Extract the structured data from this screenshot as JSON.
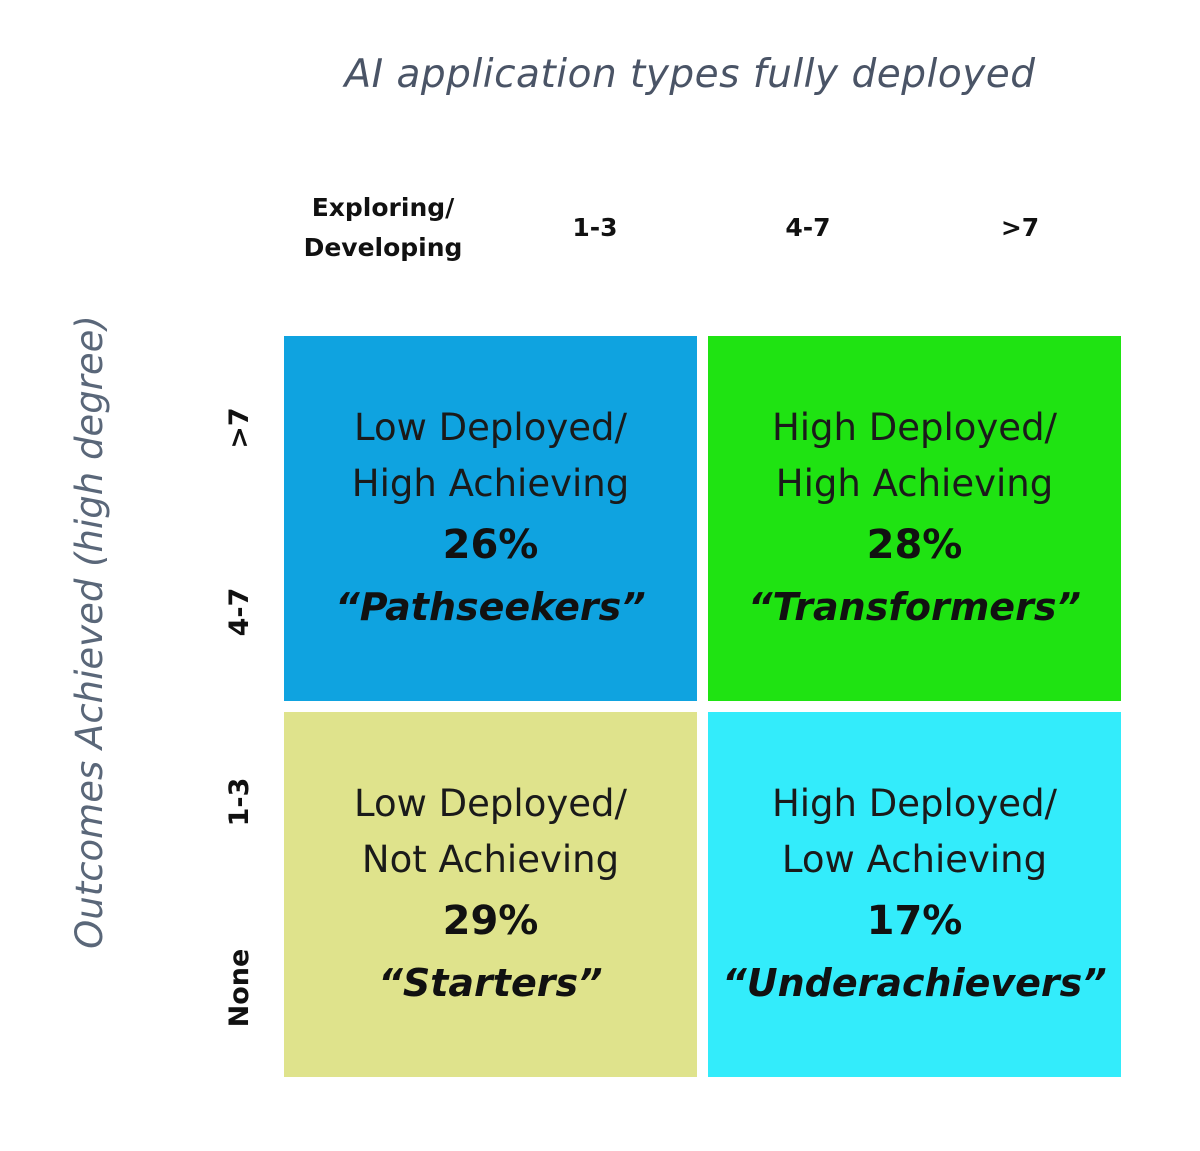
{
  "x_axis": {
    "title": "AI application types fully deployed",
    "columns": [
      {
        "lines": [
          "Exploring/",
          "Developing"
        ]
      },
      {
        "lines": [
          "1-3"
        ]
      },
      {
        "lines": [
          "4-7"
        ]
      },
      {
        "lines": [
          ">7"
        ]
      }
    ]
  },
  "y_axis": {
    "title": "Outcomes Achieved (high degree)",
    "rows": [
      ">7",
      "4-7",
      "1-3",
      "None"
    ]
  },
  "quadrants": {
    "top_left": {
      "line1": "Low Deployed/",
      "line2": "High Achieving",
      "percent": "26%",
      "segment": "“Pathseekers”",
      "color": "#0fa3e0"
    },
    "top_right": {
      "line1": "High Deployed/",
      "line2": "High Achieving",
      "percent": "28%",
      "segment": "“Transformers”",
      "color": "#1fe312"
    },
    "bottom_left": {
      "line1": "Low Deployed/",
      "line2": "Not Achieving",
      "percent": "29%",
      "segment": "“Starters”",
      "color": "#dfe38c"
    },
    "bottom_right": {
      "line1": "High Deployed/",
      "line2": "Low Achieving",
      "percent": "17%",
      "segment": "“Underachievers”",
      "color": "#33ecfb"
    }
  }
}
